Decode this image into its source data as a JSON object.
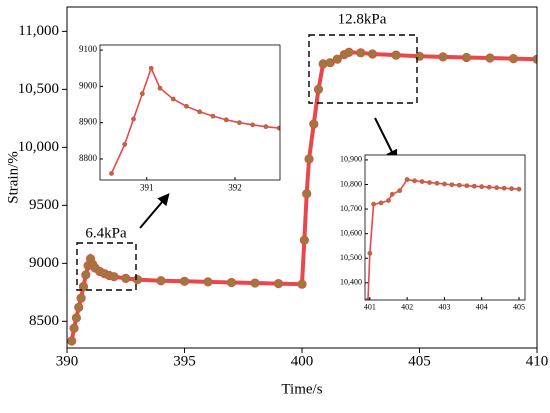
{
  "chart_data": [
    {
      "type": "line",
      "xlabel": "Time/s",
      "ylabel": "Strain/%",
      "annotations": [
        "6.4kPa",
        "12.8kPa"
      ],
      "x": [
        390.2,
        390.3,
        390.4,
        390.5,
        390.6,
        390.7,
        390.8,
        390.9,
        391.0,
        391.1,
        391.2,
        391.4,
        391.6,
        391.8,
        392,
        392.5,
        393,
        394,
        395,
        396,
        397,
        398,
        399,
        400,
        400.1,
        400.2,
        400.3,
        400.5,
        400.7,
        400.9,
        401.2,
        401.5,
        401.8,
        402,
        402.5,
        403,
        404,
        405,
        406,
        407,
        408,
        409,
        410
      ],
      "series": [
        {
          "color": "#e8474c",
          "marker_color": "#9b7a3a",
          "values": [
            8330,
            8440,
            8530,
            8620,
            8700,
            8800,
            8900,
            8980,
            9040,
            8990,
            8960,
            8930,
            8910,
            8895,
            8885,
            8870,
            8860,
            8850,
            8845,
            8840,
            8835,
            8830,
            8825,
            8820,
            9200,
            9600,
            9900,
            10200,
            10500,
            10720,
            10730,
            10760,
            10800,
            10820,
            10815,
            10805,
            10795,
            10785,
            10780,
            10775,
            10770,
            10765,
            10760
          ]
        }
      ],
      "xlim": [
        390,
        410
      ],
      "xticks": [
        390,
        395,
        400,
        405,
        410
      ],
      "ylim": [
        8270,
        11210
      ],
      "yticks": [
        8500,
        9000,
        9500,
        {
          "value": 10000,
          "label": "10,000"
        },
        {
          "value": 10500,
          "label": "10,500"
        },
        {
          "value": 11000,
          "label": "11,000"
        }
      ]
    },
    {
      "type": "line",
      "x": [
        390.6,
        390.75,
        390.85,
        390.95,
        391.05,
        391.15,
        391.3,
        391.45,
        391.6,
        391.75,
        391.9,
        392.05,
        392.2,
        392.35,
        392.5
      ],
      "series": [
        {
          "color": "#e8474c",
          "marker_color": "#9b7a3a",
          "values": [
            8760,
            8840,
            8910,
            8980,
            9050,
            8995,
            8965,
            8945,
            8930,
            8918,
            8908,
            8900,
            8894,
            8889,
            8885
          ]
        }
      ],
      "xlim": [
        390.47,
        392.51
      ],
      "xticks": [
        391,
        392
      ],
      "ylim": [
        8742,
        9114
      ],
      "yticks": [
        8800,
        8900,
        9000,
        9100
      ]
    },
    {
      "type": "line",
      "x": [
        400.95,
        401.0,
        401.1,
        401.3,
        401.5,
        401.6,
        401.8,
        402.0,
        402.2,
        402.4,
        402.6,
        402.8,
        403.0,
        403.2,
        403.4,
        403.6,
        403.8,
        404.0,
        404.2,
        404.4,
        404.6,
        404.8,
        405.0
      ],
      "series": [
        {
          "color": "#e8474c",
          "marker_color": "#9b7a3a",
          "values": [
            10330,
            10520,
            10720,
            10725,
            10735,
            10760,
            10775,
            10820,
            10815,
            10812,
            10808,
            10805,
            10802,
            10799,
            10797,
            10795,
            10793,
            10791,
            10789,
            10787,
            10785,
            10783,
            10781
          ]
        }
      ],
      "xlim": [
        400.87,
        405.16
      ],
      "xticks": [
        401,
        402,
        403,
        404,
        405
      ],
      "ylim": [
        10330,
        10920
      ],
      "yticks": [
        {
          "value": 10400,
          "label": "10,400"
        },
        {
          "value": 10500,
          "label": "10,500"
        },
        {
          "value": 10600,
          "label": "10,600"
        },
        {
          "value": 10700,
          "label": "10,700"
        },
        {
          "value": 10800,
          "label": "10,800"
        },
        {
          "value": 10900,
          "label": "10,900"
        }
      ]
    }
  ]
}
